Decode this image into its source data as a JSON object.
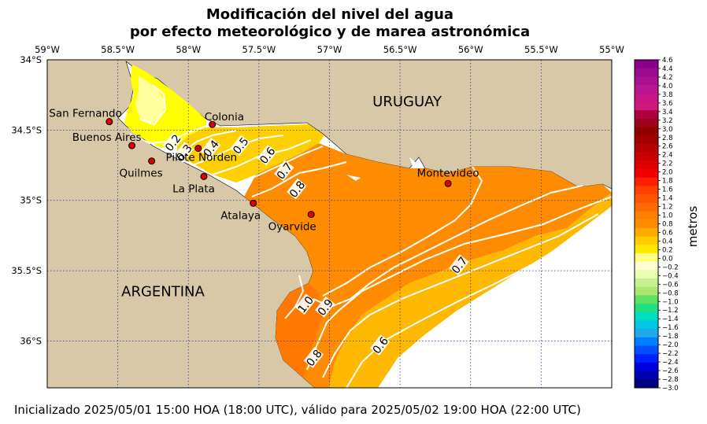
{
  "title": {
    "line1": "Modificación del nivel del agua",
    "line2": "por efecto meteorológico y de marea astronómica"
  },
  "footer": "Inicializado 2025/05/01 15:00 HOA (18:00 UTC), válido para 2025/05/02 19:00 HOA (22:00 UTC)",
  "axes": {
    "lon_ticks": [
      "59°W",
      "58.5°W",
      "58°W",
      "57.5°W",
      "57°W",
      "56.5°W",
      "56°W",
      "55.5°W",
      "55°W"
    ],
    "lat_ticks": [
      "34°S",
      "34.5°S",
      "35°S",
      "35.5°S",
      "36°S"
    ]
  },
  "regions": [
    {
      "id": "uruguay",
      "label": "URUGUAY",
      "lon": -56.45,
      "lat": -34.33
    },
    {
      "id": "argentina",
      "label": "ARGENTINA",
      "lon": -58.18,
      "lat": -35.68
    }
  ],
  "locations": [
    {
      "id": "san-fernando",
      "name": "San Fernando",
      "lon": -58.56,
      "lat": -34.44,
      "anchor": "end"
    },
    {
      "id": "buenos-aires",
      "name": "Buenos Aires",
      "lon": -58.4,
      "lat": -34.61,
      "anchor": "end"
    },
    {
      "id": "quilmes",
      "name": "Quilmes",
      "lon": -58.26,
      "lat": -34.72,
      "anchor": "end"
    },
    {
      "id": "colonia",
      "name": "Colonia",
      "lon": -57.83,
      "lat": -34.46,
      "anchor": "start"
    },
    {
      "id": "pilote-norden",
      "name": "Pilote Norden",
      "lon": -57.93,
      "lat": -34.63,
      "anchor": "middle"
    },
    {
      "id": "la-plata",
      "name": "La Plata",
      "lon": -57.89,
      "lat": -34.83,
      "anchor": "end"
    },
    {
      "id": "atalaya",
      "name": "Atalaya",
      "lon": -57.54,
      "lat": -35.02,
      "anchor": "middle"
    },
    {
      "id": "oyarvide",
      "name": "Oyarvide",
      "lon": -57.13,
      "lat": -35.1,
      "anchor": "middle"
    },
    {
      "id": "montevideo",
      "name": "Montevideo",
      "lon": -56.16,
      "lat": -34.88,
      "anchor": "middle"
    }
  ],
  "contour_labels": [
    {
      "text": "0.2",
      "lon": -58.11,
      "lat": -34.59
    },
    {
      "text": "0.3",
      "lon": -58.03,
      "lat": -34.66
    },
    {
      "text": "0.4",
      "lon": -57.84,
      "lat": -34.63
    },
    {
      "text": "0.5",
      "lon": -57.63,
      "lat": -34.61
    },
    {
      "text": "0.6",
      "lon": -57.44,
      "lat": -34.68
    },
    {
      "text": "0.7",
      "lon": -57.32,
      "lat": -34.79
    },
    {
      "text": "0.8",
      "lon": -57.23,
      "lat": -34.92
    },
    {
      "text": "0.7",
      "lon": -56.08,
      "lat": -35.46
    },
    {
      "text": "1.0",
      "lon": -57.17,
      "lat": -35.74
    },
    {
      "text": "0.9",
      "lon": -57.03,
      "lat": -35.76
    },
    {
      "text": "0.6",
      "lon": -56.64,
      "lat": -36.03
    },
    {
      "text": "0.8",
      "lon": -57.11,
      "lat": -36.12
    }
  ],
  "colorbar": {
    "label": "metros",
    "tick_labels": [
      "4.6",
      "4.4",
      "4.2",
      "4.0",
      "3.8",
      "3.6",
      "3.4",
      "3.2",
      "3.0",
      "2.8",
      "2.6",
      "2.4",
      "2.2",
      "2.0",
      "1.8",
      "1.6",
      "1.4",
      "1.2",
      "1.0",
      "0.8",
      "0.6",
      "0.4",
      "0.2",
      "0.0",
      "−0.2",
      "−0.4",
      "−0.6",
      "−0.8",
      "−1.0",
      "−1.2",
      "−1.4",
      "−1.6",
      "−1.8",
      "−2.0",
      "−2.2",
      "−2.4",
      "−2.6",
      "−2.8",
      "−3.0"
    ],
    "colors": [
      "#8b008b",
      "#9a0a8f",
      "#aa1090",
      "#b81590",
      "#c71585",
      "#d01a7a",
      "#b00040",
      "#a00020",
      "#900000",
      "#a00000",
      "#b40000",
      "#c80000",
      "#dc0000",
      "#f00000",
      "#ff2000",
      "#ff4000",
      "#ff5500",
      "#ff6a00",
      "#ff7f00",
      "#ff8c00",
      "#ffaa00",
      "#ffcc00",
      "#ffe800",
      "#ffff80",
      "#ffffd0",
      "#e8ffb0",
      "#c8f090",
      "#a8e870",
      "#60e060",
      "#20e080",
      "#00e0c0",
      "#00c8e0",
      "#20a8e8",
      "#0080ff",
      "#0050ff",
      "#0020ff",
      "#0000e0",
      "#0000b0",
      "#000080"
    ]
  },
  "colors": {
    "land": "#d8c8a8",
    "water_white": "#ffffff",
    "level_0_1": "#ffffa0",
    "level_0_2": "#ffff00",
    "level_0_4": "#ffd000",
    "level_0_6": "#ffb800",
    "level_0_8": "#ff8c00",
    "level_1_0": "#ff7800",
    "marker": "#dd0000",
    "contour": "#ffffff",
    "grid": "#333399"
  }
}
